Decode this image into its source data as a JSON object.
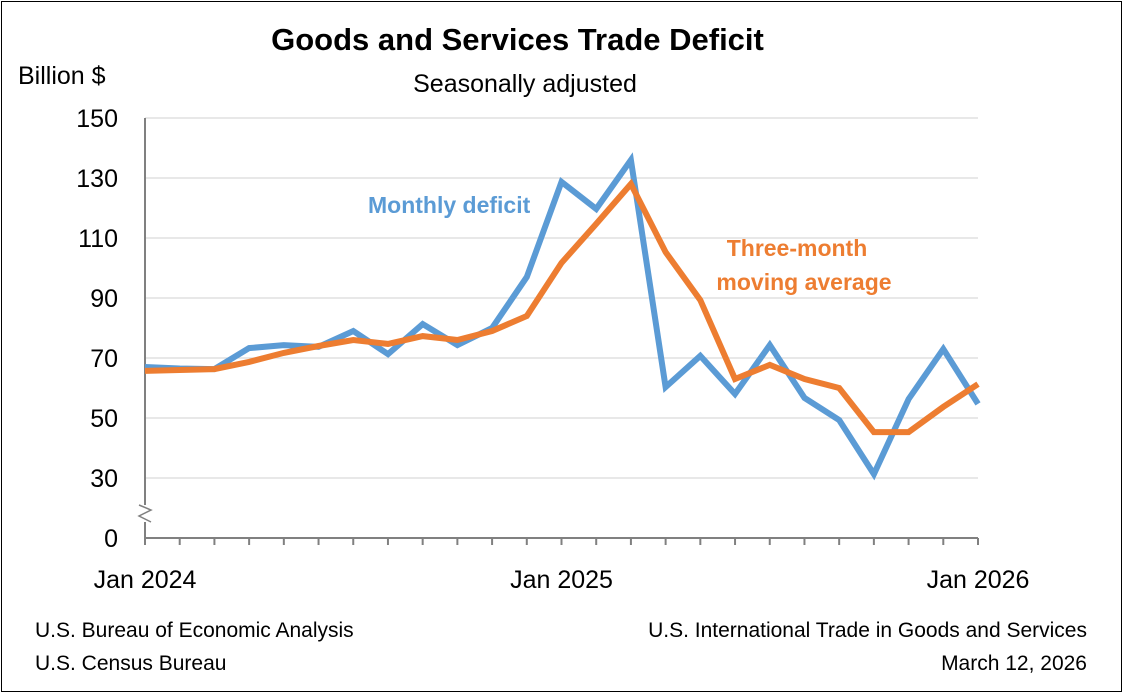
{
  "chart_data": {
    "type": "line",
    "title": "Goods and Services Trade Deficit",
    "subtitle": "Seasonally adjusted",
    "ylabel": "Billion $",
    "xlabel": "",
    "ylim": [
      0,
      150
    ],
    "axis_break": "between 0 and 30",
    "y_ticks": [
      "0",
      "30",
      "50",
      "70",
      "90",
      "110",
      "130",
      "150"
    ],
    "x_tick_labels": [
      "Jan 2024",
      "Jan 2025",
      "Jan 2026"
    ],
    "x": [
      "2024-01",
      "2024-02",
      "2024-03",
      "2024-04",
      "2024-05",
      "2024-06",
      "2024-07",
      "2024-08",
      "2024-09",
      "2024-10",
      "2024-11",
      "2024-12",
      "2025-01",
      "2025-02",
      "2025-03",
      "2025-04",
      "2025-05",
      "2025-06",
      "2025-07",
      "2025-08",
      "2025-09",
      "2025-10",
      "2025-11",
      "2025-12",
      "2026-01"
    ],
    "grid": "horizontal",
    "series": [
      {
        "name": "Monthly deficit",
        "color": "#5B9BD5",
        "values": [
          67.0,
          66.5,
          66.3,
          73.3,
          74.3,
          73.7,
          79.0,
          71.3,
          81.3,
          74.3,
          80.0,
          97.0,
          128.7,
          119.7,
          136.0,
          60.3,
          70.7,
          58.0,
          74.3,
          56.7,
          49.3,
          31.3,
          56.3,
          73.0,
          54.7
        ]
      },
      {
        "name": "Three-month moving average",
        "name_lines": [
          "Three-month",
          "moving average"
        ],
        "color": "#ED7D31",
        "values": [
          65.7,
          66.0,
          66.3,
          68.7,
          71.7,
          74.0,
          76.0,
          74.7,
          77.3,
          76.0,
          79.0,
          84.0,
          101.7,
          114.7,
          128.0,
          105.3,
          89.3,
          63.0,
          67.7,
          63.0,
          60.0,
          45.3,
          45.3,
          53.7,
          61.3
        ]
      }
    ]
  },
  "footer": {
    "left_1": "U.S. Bureau of Economic Analysis",
    "left_2": "U.S. Census Bureau",
    "right_1": "U.S. International Trade in Goods and Services",
    "right_2": "March 12, 2026"
  }
}
